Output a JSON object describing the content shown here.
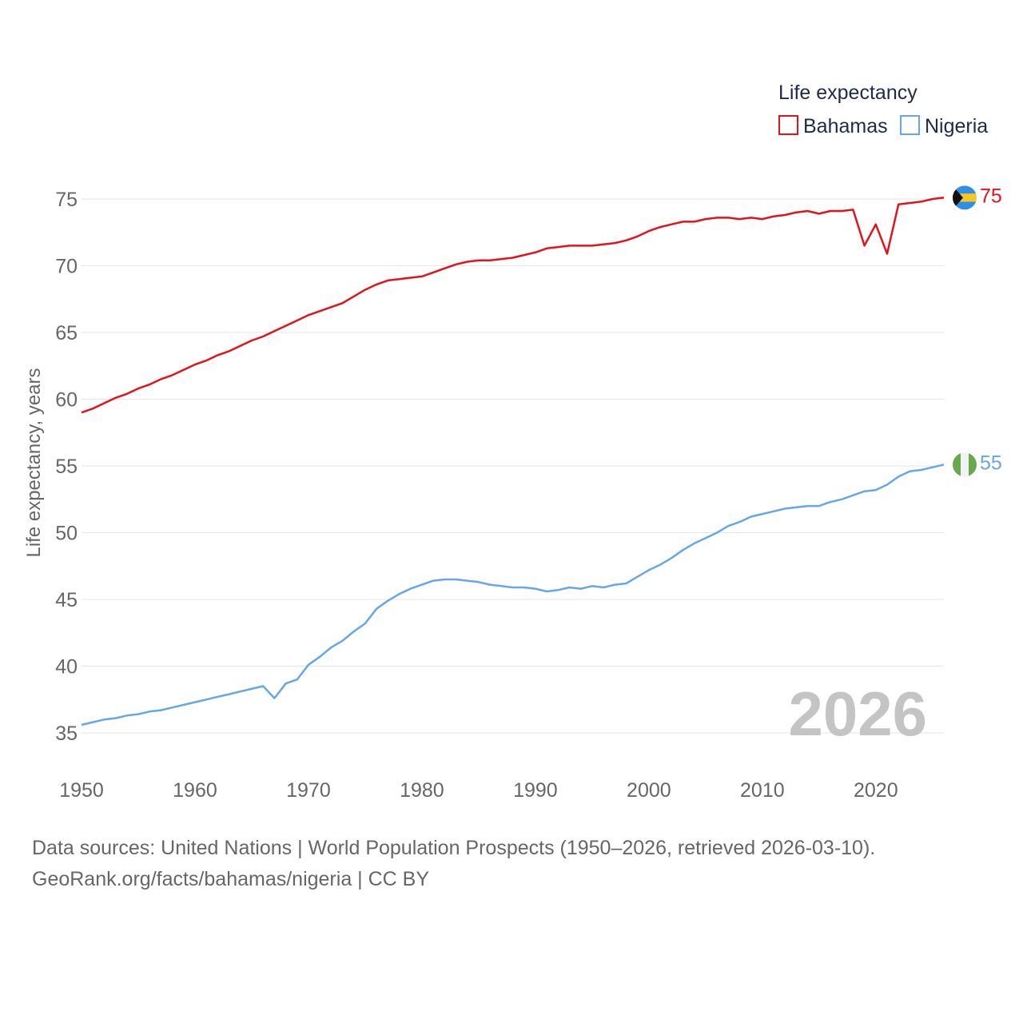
{
  "chart_data": {
    "type": "line",
    "ylabel": "Life expectancy, years",
    "xlabel": "",
    "xlim": [
      1950,
      2026
    ],
    "ylim": [
      33,
      77
    ],
    "xticks": [
      1950,
      1960,
      1970,
      1980,
      1990,
      2000,
      2010,
      2020
    ],
    "yticks": [
      35,
      40,
      45,
      50,
      55,
      60,
      65,
      70,
      75
    ],
    "grid": true,
    "legend": {
      "title": "Life expectancy",
      "position": "top-right"
    },
    "year_label": "2026",
    "series": [
      {
        "name": "Bahamas",
        "color": "#e3121b",
        "end_label": "75",
        "x": [
          1950,
          1951,
          1952,
          1953,
          1954,
          1955,
          1956,
          1957,
          1958,
          1959,
          1960,
          1961,
          1962,
          1963,
          1964,
          1965,
          1966,
          1967,
          1968,
          1969,
          1970,
          1971,
          1972,
          1973,
          1974,
          1975,
          1976,
          1977,
          1978,
          1979,
          1980,
          1981,
          1982,
          1983,
          1984,
          1985,
          1986,
          1987,
          1988,
          1989,
          1990,
          1991,
          1992,
          1993,
          1994,
          1995,
          1996,
          1997,
          1998,
          1999,
          2000,
          2001,
          2002,
          2003,
          2004,
          2005,
          2006,
          2007,
          2008,
          2009,
          2010,
          2011,
          2012,
          2013,
          2014,
          2015,
          2016,
          2017,
          2018,
          2019,
          2020,
          2021,
          2022,
          2023,
          2024,
          2025,
          2026
        ],
        "values": [
          59.0,
          59.3,
          59.7,
          60.1,
          60.4,
          60.8,
          61.1,
          61.5,
          61.8,
          62.2,
          62.6,
          62.9,
          63.3,
          63.6,
          64.0,
          64.4,
          64.7,
          65.1,
          65.5,
          65.9,
          66.3,
          66.6,
          66.9,
          67.2,
          67.7,
          68.2,
          68.6,
          68.9,
          69.0,
          69.1,
          69.2,
          69.5,
          69.8,
          70.1,
          70.3,
          70.4,
          70.4,
          70.5,
          70.6,
          70.8,
          71.0,
          71.3,
          71.4,
          71.5,
          71.5,
          71.5,
          71.6,
          71.7,
          71.9,
          72.2,
          72.6,
          72.9,
          73.1,
          73.3,
          73.3,
          73.5,
          73.6,
          73.6,
          73.5,
          73.6,
          73.5,
          73.7,
          73.8,
          74.0,
          74.1,
          73.9,
          74.1,
          74.1,
          74.2,
          71.5,
          73.1,
          70.9,
          74.6,
          74.7,
          74.8,
          75.0,
          75.1
        ]
      },
      {
        "name": "Nigeria",
        "color": "#66a7e6",
        "end_label": "55",
        "x": [
          1950,
          1951,
          1952,
          1953,
          1954,
          1955,
          1956,
          1957,
          1958,
          1959,
          1960,
          1961,
          1962,
          1963,
          1964,
          1965,
          1966,
          1967,
          1968,
          1969,
          1970,
          1971,
          1972,
          1973,
          1974,
          1975,
          1976,
          1977,
          1978,
          1979,
          1980,
          1981,
          1982,
          1983,
          1984,
          1985,
          1986,
          1987,
          1988,
          1989,
          1990,
          1991,
          1992,
          1993,
          1994,
          1995,
          1996,
          1997,
          1998,
          1999,
          2000,
          2001,
          2002,
          2003,
          2004,
          2005,
          2006,
          2007,
          2008,
          2009,
          2010,
          2011,
          2012,
          2013,
          2014,
          2015,
          2016,
          2017,
          2018,
          2019,
          2020,
          2021,
          2022,
          2023,
          2024,
          2025,
          2026
        ],
        "values": [
          35.6,
          35.8,
          36.0,
          36.1,
          36.3,
          36.4,
          36.6,
          36.7,
          36.9,
          37.1,
          37.3,
          37.5,
          37.7,
          37.9,
          38.1,
          38.3,
          38.5,
          37.6,
          38.7,
          39.0,
          40.1,
          40.7,
          41.4,
          41.9,
          42.6,
          43.2,
          44.3,
          44.9,
          45.4,
          45.8,
          46.1,
          46.4,
          46.5,
          46.5,
          46.4,
          46.3,
          46.1,
          46.0,
          45.9,
          45.9,
          45.8,
          45.6,
          45.7,
          45.9,
          45.8,
          46.0,
          45.9,
          46.1,
          46.2,
          46.7,
          47.2,
          47.6,
          48.1,
          48.7,
          49.2,
          49.6,
          50.0,
          50.5,
          50.8,
          51.2,
          51.4,
          51.6,
          51.8,
          51.9,
          52.0,
          52.0,
          52.3,
          52.5,
          52.8,
          53.1,
          53.2,
          53.6,
          54.2,
          54.6,
          54.7,
          54.9,
          55.1
        ]
      }
    ]
  },
  "footer": {
    "line1": "Data sources: United Nations | World Population Prospects (1950–2026, retrieved 2026-03-10).",
    "line2": "GeoRank.org/facts/bahamas/nigeria | CC BY"
  }
}
